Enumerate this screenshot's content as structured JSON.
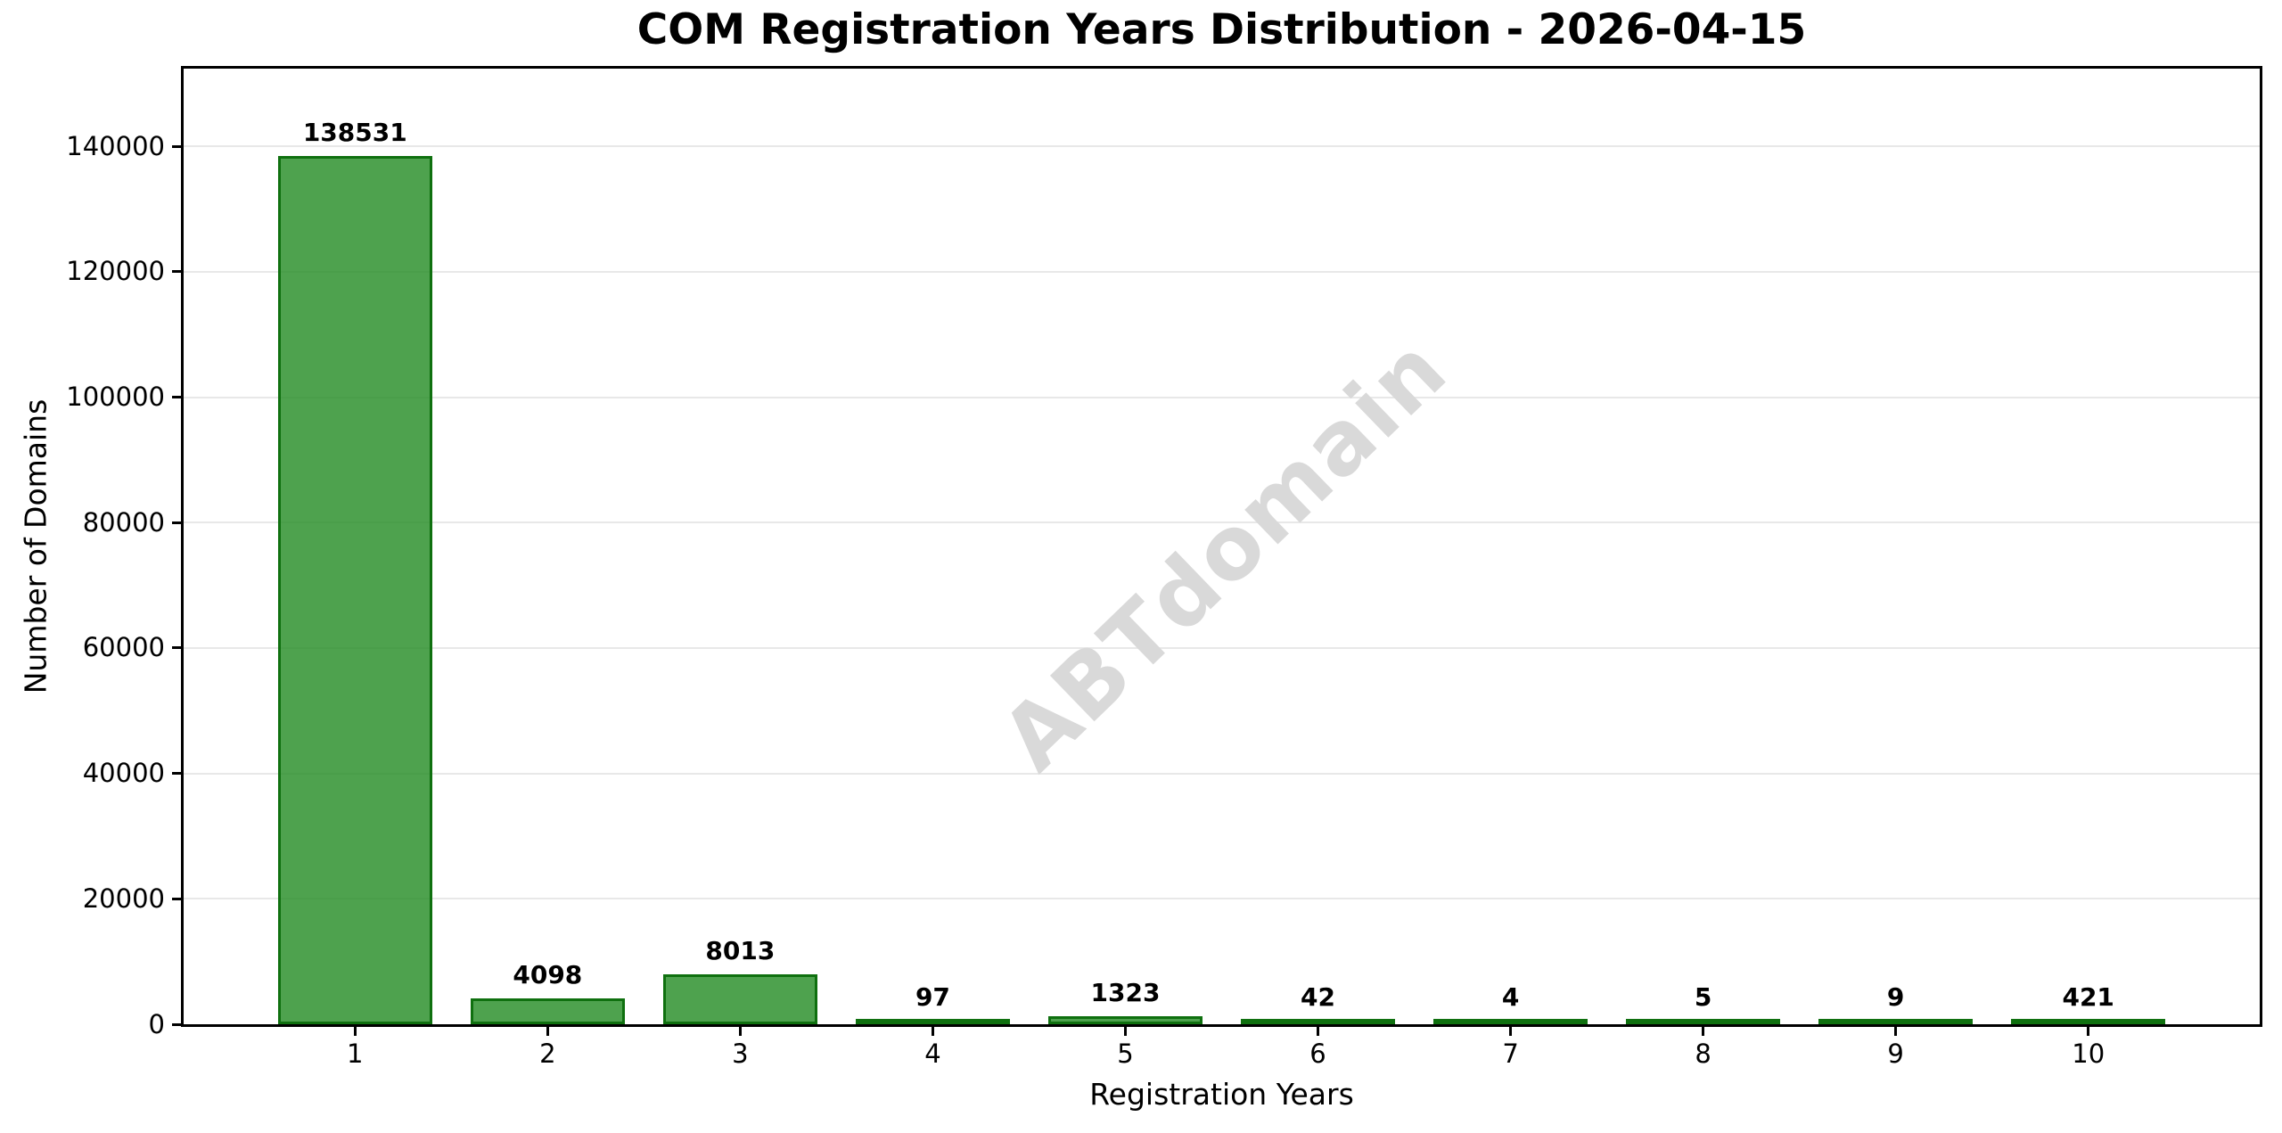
{
  "watermark": {
    "text": "ABTdomain",
    "color": "#d9d9d9"
  },
  "chart_data": {
    "type": "bar",
    "title": "COM Registration Years Distribution - 2026-04-15",
    "xlabel": "Registration Years",
    "ylabel": "Number of Domains",
    "categories": [
      "1",
      "2",
      "3",
      "4",
      "5",
      "6",
      "7",
      "8",
      "9",
      "10"
    ],
    "values": [
      138531,
      4098,
      8013,
      97,
      1323,
      42,
      4,
      5,
      9,
      421
    ],
    "value_labels": [
      "138531",
      "4098",
      "8013",
      "97",
      "1323",
      "42",
      "4",
      "5",
      "9",
      "421"
    ],
    "yticks": [
      0,
      20000,
      40000,
      60000,
      80000,
      100000,
      120000,
      140000
    ],
    "ytick_labels": [
      "0",
      "20000",
      "40000",
      "60000",
      "80000",
      "100000",
      "120000",
      "140000"
    ],
    "ylim": [
      0,
      152400
    ],
    "xlim": [
      0.11,
      10.89
    ],
    "bar_width": 0.8,
    "grid": "horizontal-only",
    "legend": "none",
    "colors": {
      "bar_fill": "rgba(34,139,34,0.8)",
      "bar_edge": "rgba(0,100,0,0.8)",
      "gridline": "#e8e8e8",
      "spine": "#000000",
      "text": "#000000"
    }
  }
}
